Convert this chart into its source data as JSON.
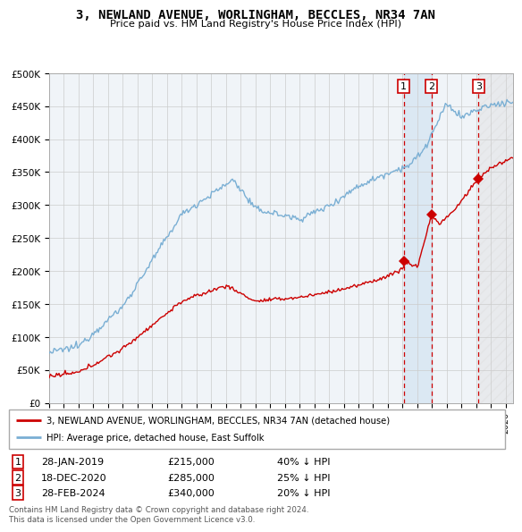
{
  "title": "3, NEWLAND AVENUE, WORLINGHAM, BECCLES, NR34 7AN",
  "subtitle": "Price paid vs. HM Land Registry's House Price Index (HPI)",
  "background_color": "#ffffff",
  "grid_color": "#cccccc",
  "transactions": [
    {
      "num": 1,
      "date": "28-JAN-2019",
      "price": 215000,
      "hpi_diff": "40% ↓ HPI",
      "x_year": 2019.08
    },
    {
      "num": 2,
      "date": "18-DEC-2020",
      "price": 285000,
      "hpi_diff": "25% ↓ HPI",
      "x_year": 2020.96
    },
    {
      "num": 3,
      "date": "28-FEB-2024",
      "price": 340000,
      "hpi_diff": "20% ↓ HPI",
      "x_year": 2024.16
    }
  ],
  "legend_line1": "3, NEWLAND AVENUE, WORLINGHAM, BECCLES, NR34 7AN (detached house)",
  "legend_line2": "HPI: Average price, detached house, East Suffolk",
  "footer": "Contains HM Land Registry data © Crown copyright and database right 2024.\nThis data is licensed under the Open Government Licence v3.0.",
  "hpi_color": "#7aafd4",
  "price_color": "#cc0000",
  "dashed_color": "#cc0000",
  "ylim": [
    0,
    500000
  ],
  "xlim_start": 1995.0,
  "xlim_end": 2026.5,
  "hatch_start": 2024.16,
  "shade_start": 2019.08,
  "shade_end": 2020.96
}
